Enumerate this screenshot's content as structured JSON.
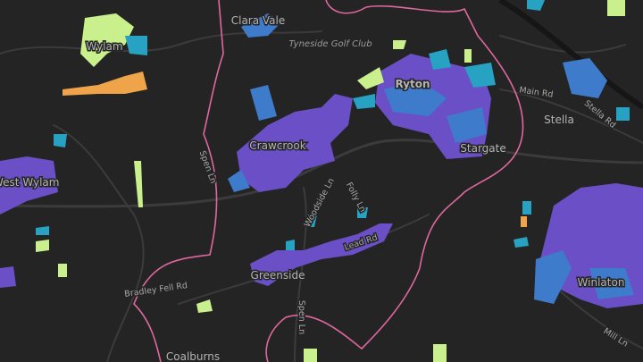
{
  "map": {
    "places": [
      {
        "label": "Clara Vale"
      },
      {
        "label": "Tyneside Golf Club"
      },
      {
        "label": "Wylam"
      },
      {
        "label": "Ryton"
      },
      {
        "label": "Stella"
      },
      {
        "label": "Crawcrook"
      },
      {
        "label": "Stargate"
      },
      {
        "label": "West Wylam"
      },
      {
        "label": "Greenside"
      },
      {
        "label": "Winlaton"
      },
      {
        "label": "Coalburns"
      }
    ],
    "roads": [
      {
        "label": "Main Rd"
      },
      {
        "label": "Stella Rd"
      },
      {
        "label": "Spen Ln"
      },
      {
        "label": "Woodside Ln"
      },
      {
        "label": "Folly Ln"
      },
      {
        "label": "Lead Rd"
      },
      {
        "label": "Bradley Fell Rd"
      },
      {
        "label": "Spen Ln"
      },
      {
        "label": "Mill Ln"
      }
    ]
  }
}
